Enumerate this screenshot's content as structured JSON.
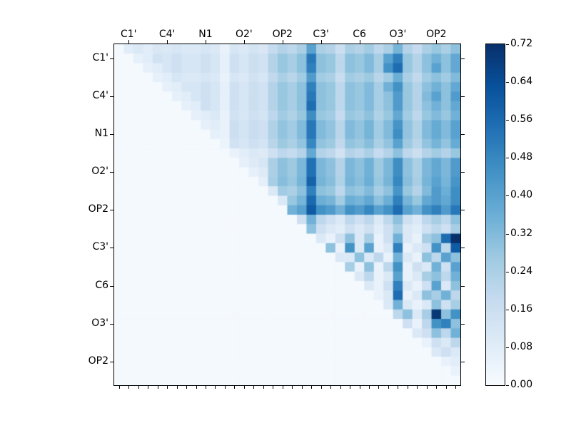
{
  "chart_data": {
    "type": "heatmap",
    "title": "",
    "x_labels": [
      "C1'",
      "C4'",
      "N1",
      "O2'",
      "OP2",
      "C3'",
      "C6",
      "O3'",
      "OP2"
    ],
    "y_labels": [
      "C1'",
      "C4'",
      "N1",
      "O2'",
      "OP2",
      "C3'",
      "C6",
      "O3'",
      "OP2"
    ],
    "label_cell_positions": [
      1,
      5,
      9,
      13,
      17,
      21,
      25,
      29,
      33
    ],
    "n": 36,
    "vmin": 0.0,
    "vmax": 0.72,
    "colormap": "Blues",
    "colormap_stops": [
      "#f7fbff",
      "#deebf7",
      "#c6dbef",
      "#9ecae1",
      "#6baed6",
      "#4292c6",
      "#2171b5",
      "#08519c",
      "#08306b"
    ],
    "axis_color": "#000000",
    "background": "#ffffff",
    "lower_fill": 0.01,
    "diagonal": 0.01,
    "upper_rows": [
      [
        0.08,
        0.1,
        0.08,
        0.11,
        0.1,
        0.12,
        0.1,
        0.1,
        0.12,
        0.1,
        0.05,
        0.12,
        0.1,
        0.13,
        0.11,
        0.18,
        0.22,
        0.2,
        0.24,
        0.4,
        0.24,
        0.22,
        0.16,
        0.24,
        0.22,
        0.26,
        0.2,
        0.24,
        0.34,
        0.22,
        0.18,
        0.24,
        0.28,
        0.24,
        0.3
      ],
      [
        0.06,
        0.08,
        0.14,
        0.12,
        0.15,
        0.12,
        0.12,
        0.15,
        0.12,
        0.06,
        0.15,
        0.12,
        0.16,
        0.14,
        0.22,
        0.28,
        0.25,
        0.3,
        0.52,
        0.3,
        0.28,
        0.2,
        0.3,
        0.28,
        0.32,
        0.25,
        0.4,
        0.5,
        0.28,
        0.22,
        0.3,
        0.35,
        0.3,
        0.38
      ],
      [
        0.06,
        0.08,
        0.12,
        0.15,
        0.12,
        0.12,
        0.15,
        0.12,
        0.06,
        0.15,
        0.12,
        0.16,
        0.14,
        0.22,
        0.28,
        0.25,
        0.3,
        0.5,
        0.3,
        0.28,
        0.2,
        0.3,
        0.28,
        0.32,
        0.25,
        0.45,
        0.55,
        0.28,
        0.22,
        0.3,
        0.4,
        0.3,
        0.38
      ],
      [
        0.06,
        0.08,
        0.12,
        0.1,
        0.1,
        0.12,
        0.1,
        0.05,
        0.12,
        0.1,
        0.14,
        0.12,
        0.19,
        0.24,
        0.21,
        0.26,
        0.42,
        0.26,
        0.24,
        0.17,
        0.26,
        0.24,
        0.27,
        0.21,
        0.26,
        0.36,
        0.24,
        0.19,
        0.26,
        0.3,
        0.26,
        0.32
      ],
      [
        0.06,
        0.08,
        0.12,
        0.12,
        0.15,
        0.12,
        0.06,
        0.15,
        0.12,
        0.16,
        0.14,
        0.22,
        0.28,
        0.25,
        0.3,
        0.5,
        0.3,
        0.28,
        0.2,
        0.3,
        0.28,
        0.32,
        0.25,
        0.35,
        0.45,
        0.28,
        0.22,
        0.3,
        0.35,
        0.3,
        0.38
      ],
      [
        0.06,
        0.08,
        0.12,
        0.15,
        0.12,
        0.06,
        0.15,
        0.12,
        0.16,
        0.14,
        0.22,
        0.28,
        0.25,
        0.3,
        0.52,
        0.3,
        0.28,
        0.2,
        0.3,
        0.28,
        0.32,
        0.25,
        0.3,
        0.42,
        0.28,
        0.22,
        0.32,
        0.4,
        0.3,
        0.42
      ],
      [
        0.06,
        0.08,
        0.15,
        0.12,
        0.06,
        0.15,
        0.12,
        0.16,
        0.14,
        0.22,
        0.28,
        0.25,
        0.3,
        0.55,
        0.3,
        0.28,
        0.2,
        0.3,
        0.28,
        0.32,
        0.25,
        0.3,
        0.42,
        0.28,
        0.22,
        0.3,
        0.35,
        0.3,
        0.38
      ],
      [
        0.06,
        0.08,
        0.1,
        0.05,
        0.14,
        0.11,
        0.15,
        0.13,
        0.2,
        0.26,
        0.23,
        0.28,
        0.46,
        0.28,
        0.26,
        0.18,
        0.28,
        0.26,
        0.3,
        0.23,
        0.28,
        0.38,
        0.26,
        0.2,
        0.28,
        0.32,
        0.28,
        0.35
      ],
      [
        0.06,
        0.08,
        0.05,
        0.16,
        0.13,
        0.17,
        0.15,
        0.23,
        0.29,
        0.26,
        0.32,
        0.52,
        0.32,
        0.29,
        0.21,
        0.32,
        0.29,
        0.34,
        0.26,
        0.32,
        0.44,
        0.29,
        0.23,
        0.32,
        0.37,
        0.32,
        0.4
      ],
      [
        0.06,
        0.05,
        0.16,
        0.13,
        0.17,
        0.15,
        0.23,
        0.29,
        0.26,
        0.32,
        0.52,
        0.32,
        0.29,
        0.21,
        0.32,
        0.29,
        0.34,
        0.26,
        0.32,
        0.46,
        0.29,
        0.23,
        0.32,
        0.37,
        0.32,
        0.4
      ],
      [
        0.04,
        0.14,
        0.12,
        0.15,
        0.13,
        0.21,
        0.27,
        0.24,
        0.29,
        0.48,
        0.29,
        0.27,
        0.19,
        0.29,
        0.27,
        0.31,
        0.24,
        0.29,
        0.4,
        0.27,
        0.21,
        0.29,
        0.34,
        0.29,
        0.37
      ],
      [
        0.05,
        0.08,
        0.1,
        0.09,
        0.15,
        0.2,
        0.18,
        0.22,
        0.38,
        0.22,
        0.2,
        0.14,
        0.22,
        0.2,
        0.24,
        0.18,
        0.22,
        0.3,
        0.2,
        0.16,
        0.22,
        0.26,
        0.22,
        0.28
      ],
      [
        0.06,
        0.09,
        0.12,
        0.24,
        0.3,
        0.27,
        0.33,
        0.54,
        0.33,
        0.3,
        0.22,
        0.33,
        0.3,
        0.35,
        0.27,
        0.33,
        0.46,
        0.3,
        0.24,
        0.33,
        0.38,
        0.33,
        0.42
      ],
      [
        0.06,
        0.09,
        0.24,
        0.3,
        0.27,
        0.33,
        0.54,
        0.33,
        0.3,
        0.22,
        0.33,
        0.3,
        0.35,
        0.27,
        0.33,
        0.46,
        0.3,
        0.24,
        0.33,
        0.38,
        0.33,
        0.42
      ],
      [
        0.07,
        0.25,
        0.31,
        0.28,
        0.34,
        0.58,
        0.34,
        0.31,
        0.23,
        0.34,
        0.31,
        0.36,
        0.28,
        0.34,
        0.48,
        0.31,
        0.25,
        0.34,
        0.4,
        0.34,
        0.44
      ],
      [
        0.1,
        0.26,
        0.24,
        0.3,
        0.5,
        0.3,
        0.28,
        0.2,
        0.3,
        0.28,
        0.32,
        0.25,
        0.3,
        0.44,
        0.28,
        0.22,
        0.32,
        0.42,
        0.36,
        0.46
      ],
      [
        0.1,
        0.28,
        0.34,
        0.56,
        0.36,
        0.34,
        0.26,
        0.36,
        0.34,
        0.38,
        0.3,
        0.36,
        0.5,
        0.34,
        0.28,
        0.38,
        0.42,
        0.38,
        0.46
      ],
      [
        0.35,
        0.4,
        0.6,
        0.45,
        0.42,
        0.35,
        0.45,
        0.42,
        0.48,
        0.4,
        0.45,
        0.55,
        0.4,
        0.35,
        0.45,
        0.5,
        0.42,
        0.52
      ],
      [
        0.15,
        0.35,
        0.2,
        0.15,
        0.1,
        0.2,
        0.15,
        0.2,
        0.1,
        0.2,
        0.3,
        0.15,
        0.1,
        0.2,
        0.25,
        0.2,
        0.3
      ],
      [
        0.3,
        0.15,
        0.1,
        0.08,
        0.15,
        0.1,
        0.15,
        0.08,
        0.15,
        0.25,
        0.1,
        0.08,
        0.15,
        0.2,
        0.15,
        0.25
      ],
      [
        0.1,
        0.05,
        0.15,
        0.3,
        0.1,
        0.25,
        0.05,
        0.15,
        0.35,
        0.1,
        0.05,
        0.25,
        0.3,
        0.55,
        0.72
      ],
      [
        0.3,
        0.05,
        0.45,
        0.1,
        0.4,
        0.05,
        0.1,
        0.5,
        0.05,
        0.1,
        0.15,
        0.45,
        0.2,
        0.6
      ],
      [
        0.1,
        0.1,
        0.3,
        0.1,
        0.2,
        0.05,
        0.35,
        0.1,
        0.05,
        0.3,
        0.2,
        0.4,
        0.3
      ],
      [
        0.25,
        0.05,
        0.3,
        0.05,
        0.2,
        0.45,
        0.05,
        0.15,
        0.1,
        0.35,
        0.15,
        0.4
      ],
      [
        0.1,
        0.2,
        0.05,
        0.1,
        0.4,
        0.05,
        0.1,
        0.25,
        0.3,
        0.2,
        0.35
      ],
      [
        0.1,
        0.05,
        0.15,
        0.5,
        0.1,
        0.05,
        0.15,
        0.4,
        0.1,
        0.3
      ],
      [
        0.05,
        0.1,
        0.55,
        0.05,
        0.1,
        0.3,
        0.25,
        0.35,
        0.2
      ],
      [
        0.1,
        0.35,
        0.1,
        0.05,
        0.1,
        0.3,
        0.15,
        0.25
      ],
      [
        0.2,
        0.3,
        0.1,
        0.25,
        0.7,
        0.3,
        0.45
      ],
      [
        0.15,
        0.05,
        0.2,
        0.45,
        0.5,
        0.3
      ],
      [
        0.1,
        0.15,
        0.3,
        0.2,
        0.35
      ],
      [
        0.05,
        0.15,
        0.1,
        0.2
      ],
      [
        0.1,
        0.15,
        0.1
      ],
      [
        0.05,
        0.08
      ],
      [
        0.05
      ],
      []
    ],
    "colorbar": {
      "ticks": [
        "0.00",
        "0.08",
        "0.16",
        "0.24",
        "0.32",
        "0.40",
        "0.48",
        "0.56",
        "0.64",
        "0.72"
      ]
    }
  }
}
